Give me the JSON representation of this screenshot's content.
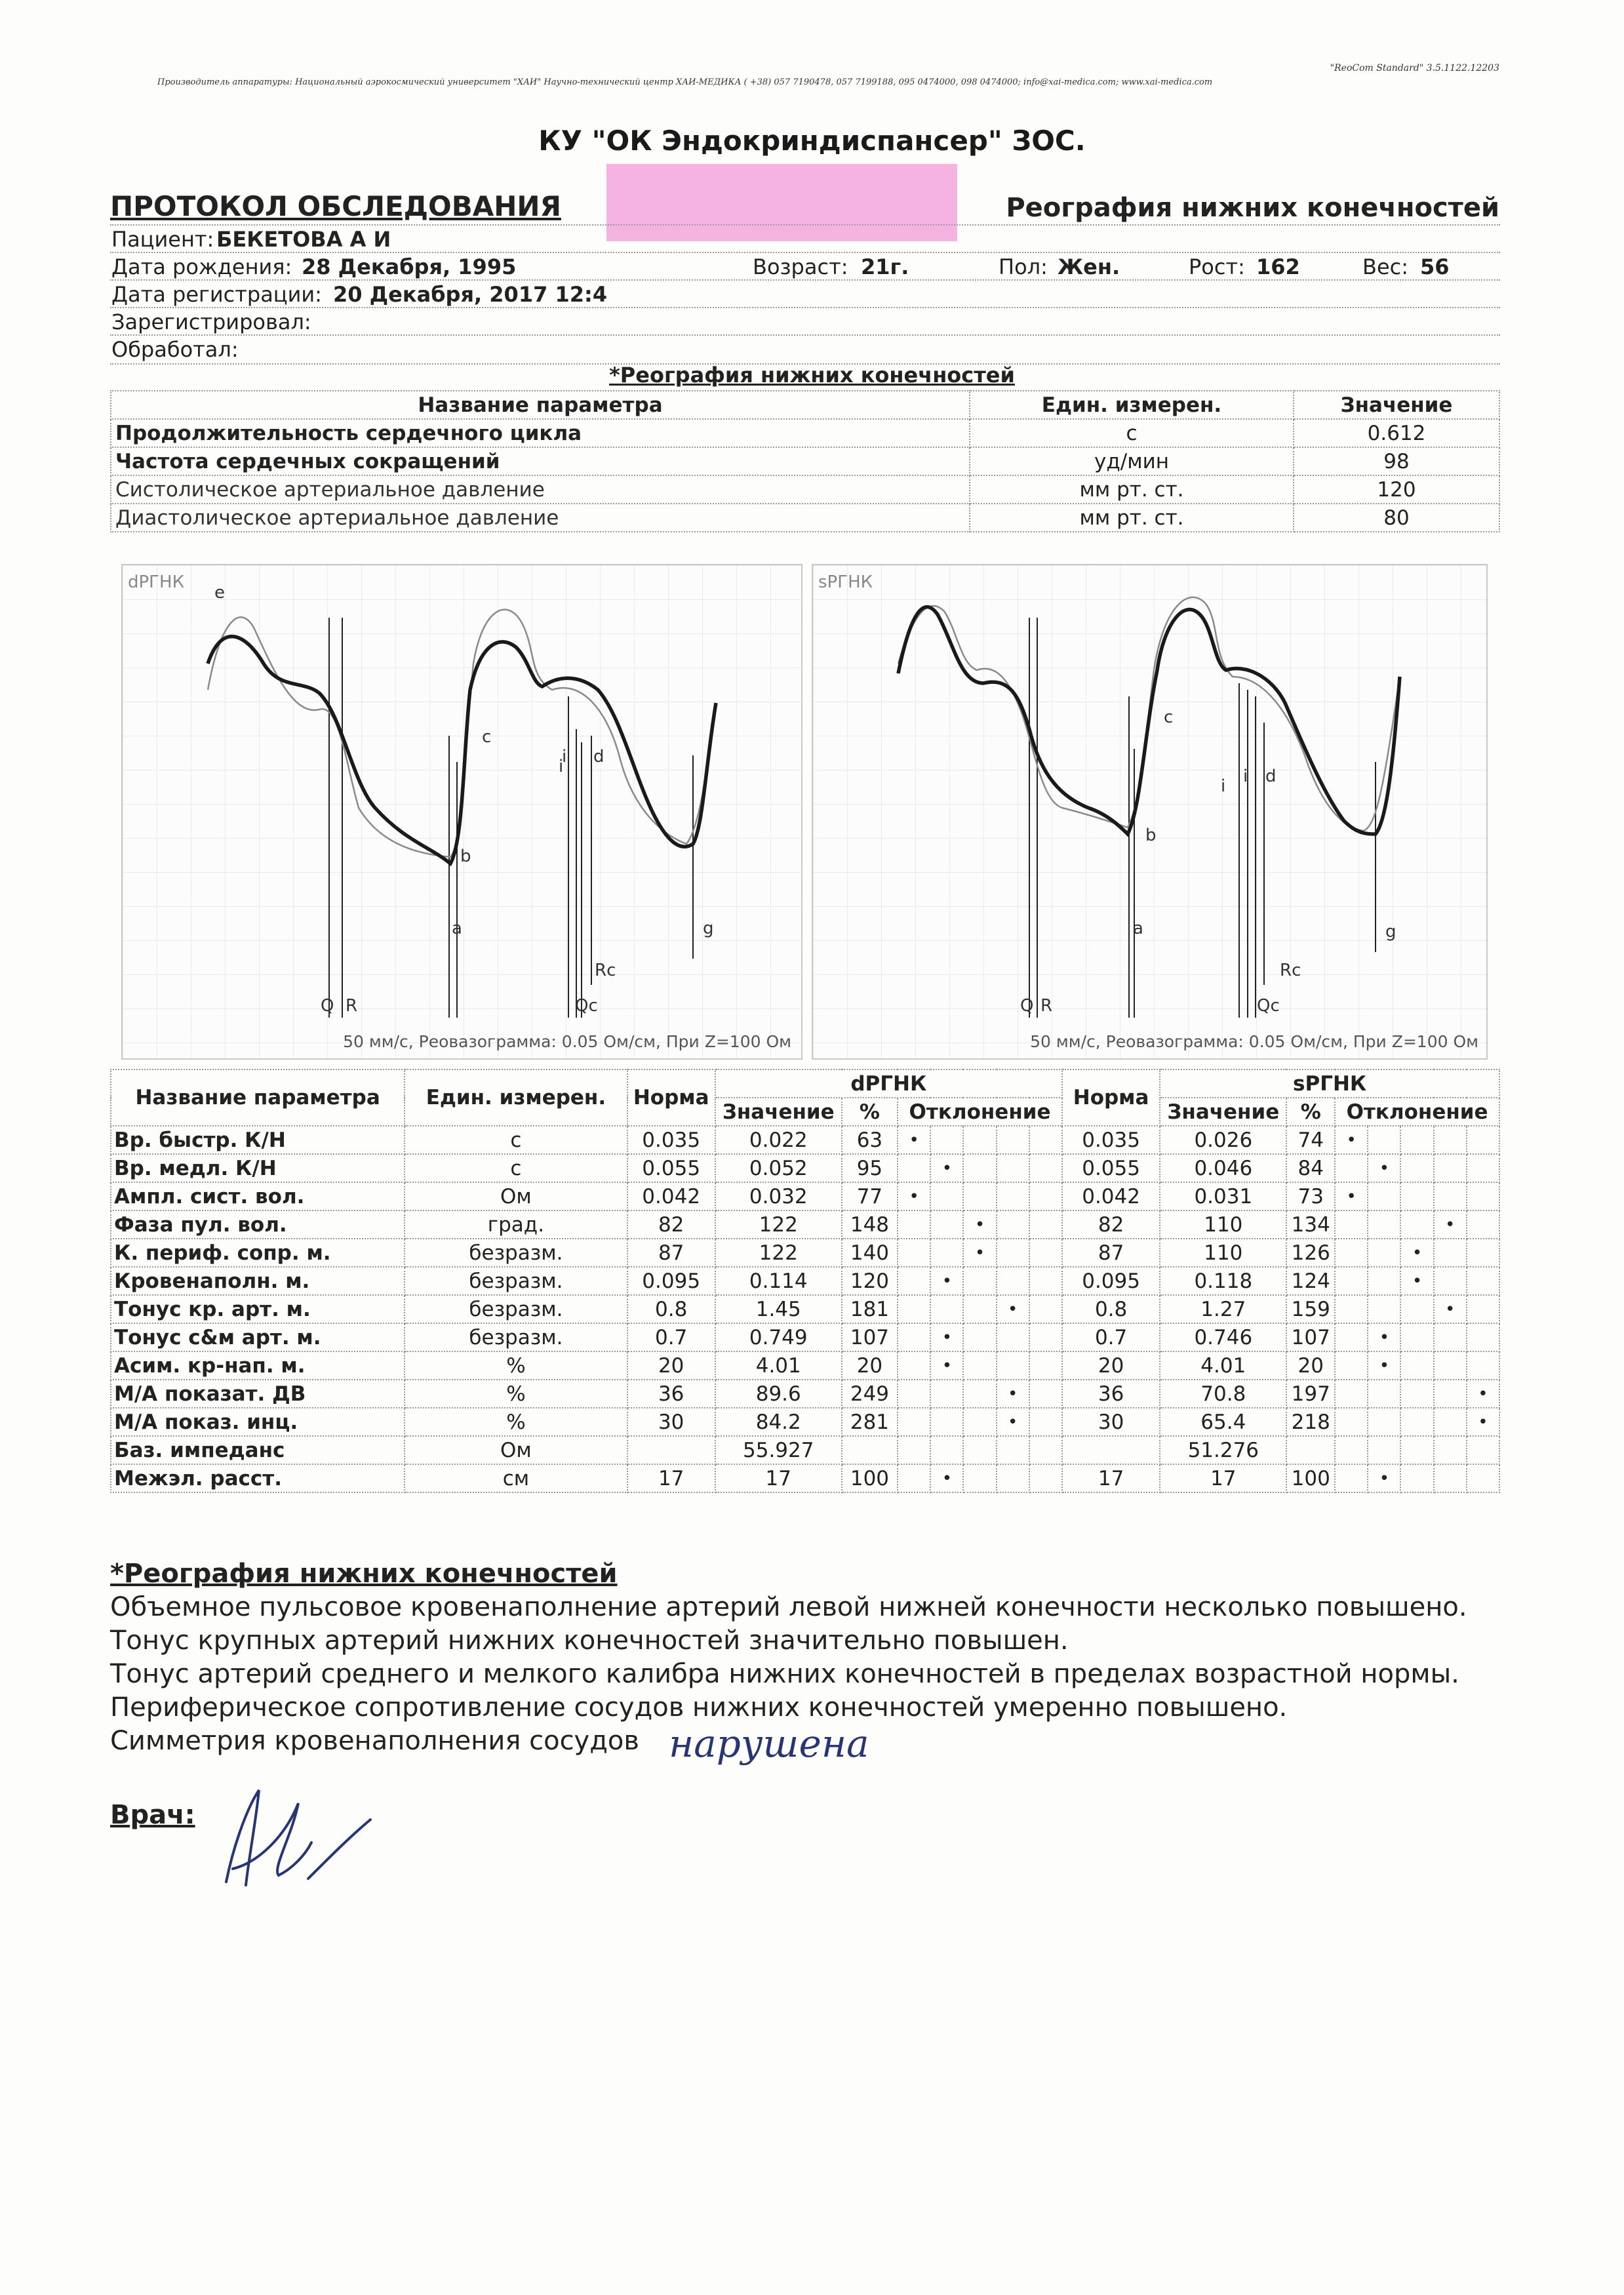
{
  "header": {
    "manufacturer": "Производитель аппаратуры: Национальный аэрокосмический университет \"ХАИ\" Научно-технический центр ХАИ-МЕДИКА ( +38) 057 7190478, 057 7199188, 095 0474000, 098 0474000; info@xai-medica.com; www.xai-medica.com",
    "version": "\"ReoCom Standard\" 3.5.1122.12203",
    "organization": "КУ \"ОК Эндокриндиспансер\" ЗОС.",
    "protocol_title": "ПРОТОКОЛ ОБСЛЕДОВАНИЯ",
    "exam_title": "Реография нижних конечностей"
  },
  "patient": {
    "name_label": "Пациент:",
    "name": "БЕКЕТОВА А И",
    "dob_label": "Дата рождения:",
    "dob": "28 Декабря, 1995",
    "age_label": "Возраст:",
    "age": "21г.",
    "sex_label": "Пол:",
    "sex": "Жен.",
    "height_label": "Рост:",
    "height": "162",
    "weight_label": "Вес:",
    "weight": "56",
    "reg_label": "Дата регистрации:",
    "reg": "20 Декабря, 2017 12:4",
    "registered_label": "Зарегистрировал:",
    "processed_label": "Обработал:"
  },
  "section_title": "*Реография нижних конечностей",
  "params_table": {
    "headers": [
      "Название параметра",
      "Един. измерен.",
      "Значение"
    ],
    "rows": [
      {
        "name": "Продолжительность сердечного цикла",
        "unit": "с",
        "value": "0.612"
      },
      {
        "name": "Частота сердечных сокращений",
        "unit": "уд/мин",
        "value": "98"
      },
      {
        "name": "Систолическое артериальное давление",
        "unit": "мм рт. ст.",
        "value": "120"
      },
      {
        "name": "Диастолическое артериальное давление",
        "unit": "мм рт. ст.",
        "value": "80"
      }
    ]
  },
  "graphs": [
    {
      "label": "dРГНК",
      "caption": "50 мм/с, Реовазограмма: 0.05 Ом/см, При Z=100 Ом",
      "marks": {
        "c": "c",
        "d": "d",
        "i": "i",
        "b": "b",
        "a": "a",
        "g": "g",
        "q": "Q",
        "r": "R",
        "qc": "Qc",
        "rc": "Rc",
        "e": "e"
      }
    },
    {
      "label": "sРГНК",
      "caption": "50 мм/с, Реовазограмма: 0.05 Ом/см, При Z=100 Ом",
      "marks": {
        "c": "c",
        "d": "d",
        "i": "i",
        "b": "b",
        "a": "a",
        "g": "g",
        "q": "Q",
        "r": "R",
        "qc": "Qc",
        "rc": "Rc"
      }
    }
  ],
  "results_table": {
    "h_name": "Название параметра",
    "h_unit": "Един. измерен.",
    "h_norm": "Норма",
    "h_group1": "dРГНК",
    "h_group2": "sРГНК",
    "h_value": "Значение",
    "h_pct": "%",
    "h_dev": "Отклонение",
    "rows": [
      {
        "name": "Вр. быстр. К/Н",
        "unit": "с",
        "n1": "0.035",
        "v1": "0.022",
        "p1": "63",
        "d1": 1,
        "n2": "0.035",
        "v2": "0.026",
        "p2": "74",
        "d2": 1
      },
      {
        "name": "Вр. медл. К/Н",
        "unit": "с",
        "n1": "0.055",
        "v1": "0.052",
        "p1": "95",
        "d1": 2,
        "n2": "0.055",
        "v2": "0.046",
        "p2": "84",
        "d2": 2
      },
      {
        "name": "Ампл. сист. вол.",
        "unit": "Ом",
        "n1": "0.042",
        "v1": "0.032",
        "p1": "77",
        "d1": 1,
        "n2": "0.042",
        "v2": "0.031",
        "p2": "73",
        "d2": 1
      },
      {
        "name": "Фаза пул. вол.",
        "unit": "град.",
        "n1": "82",
        "v1": "122",
        "p1": "148",
        "d1": 3,
        "n2": "82",
        "v2": "110",
        "p2": "134",
        "d2": 4
      },
      {
        "name": "К. периф. сопр. м.",
        "unit": "безразм.",
        "n1": "87",
        "v1": "122",
        "p1": "140",
        "d1": 3,
        "n2": "87",
        "v2": "110",
        "p2": "126",
        "d2": 3
      },
      {
        "name": "Кровенаполн. м.",
        "unit": "безразм.",
        "n1": "0.095",
        "v1": "0.114",
        "p1": "120",
        "d1": 2,
        "n2": "0.095",
        "v2": "0.118",
        "p2": "124",
        "d2": 3
      },
      {
        "name": "Тонус кр. арт. м.",
        "unit": "безразм.",
        "n1": "0.8",
        "v1": "1.45",
        "p1": "181",
        "d1": 4,
        "n2": "0.8",
        "v2": "1.27",
        "p2": "159",
        "d2": 4
      },
      {
        "name": "Тонус с&м арт. м.",
        "unit": "безразм.",
        "n1": "0.7",
        "v1": "0.749",
        "p1": "107",
        "d1": 2,
        "n2": "0.7",
        "v2": "0.746",
        "p2": "107",
        "d2": 2
      },
      {
        "name": "Асим. кр-нап. м.",
        "unit": "%",
        "n1": "20",
        "v1": "4.01",
        "p1": "20",
        "d1": 2,
        "n2": "20",
        "v2": "4.01",
        "p2": "20",
        "d2": 2
      },
      {
        "name": "М/А показат. ДВ",
        "unit": "%",
        "n1": "36",
        "v1": "89.6",
        "p1": "249",
        "d1": 4,
        "n2": "36",
        "v2": "70.8",
        "p2": "197",
        "d2": 5
      },
      {
        "name": "М/А показ. инц.",
        "unit": "%",
        "n1": "30",
        "v1": "84.2",
        "p1": "281",
        "d1": 4,
        "n2": "30",
        "v2": "65.4",
        "p2": "218",
        "d2": 5
      },
      {
        "name": "Баз. импеданс",
        "unit": "Ом",
        "n1": "",
        "v1": "55.927",
        "p1": "",
        "d1": 0,
        "n2": "",
        "v2": "51.276",
        "p2": "",
        "d2": 0
      },
      {
        "name": "Межэл. расст.",
        "unit": "см",
        "n1": "17",
        "v1": "17",
        "p1": "100",
        "d1": 2,
        "n2": "17",
        "v2": "17",
        "p2": "100",
        "d2": 2
      }
    ]
  },
  "conclusion": {
    "title": "*Реография нижних конечностей",
    "lines": [
      "Объемное пульсовое кровенаполнение артерий левой нижней конечности несколько повышено.",
      "Тонус крупных артерий нижних конечностей значительно повышен.",
      "Тонус артерий среднего и мелкого калибра нижних конечностей в пределах возрастной нормы.",
      "Периферическое сопротивление сосудов нижних конечностей умеренно повышено.",
      "Симметрия кровенаполнения сосудов"
    ],
    "handwritten": "нарушена",
    "doctor_label": "Врач:"
  },
  "colors": {
    "pink_mark": "#f3a6dc",
    "ink": "#283573"
  }
}
